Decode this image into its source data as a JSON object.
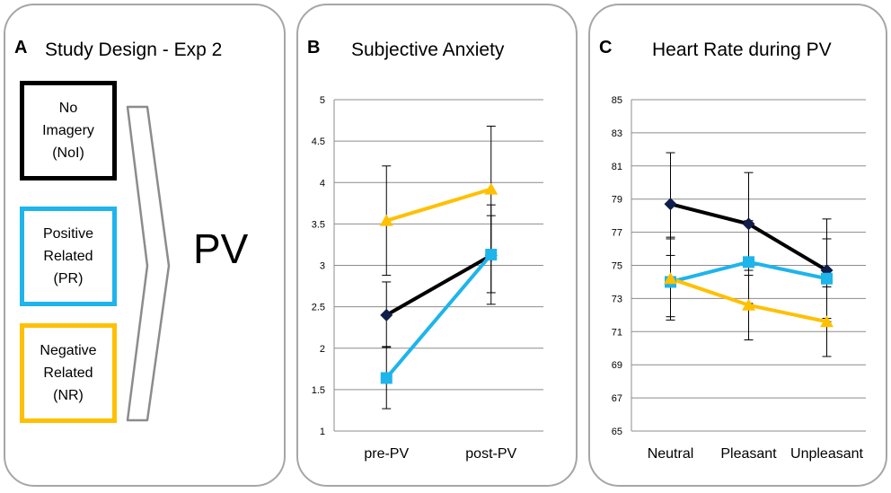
{
  "panel_a": {
    "label": "A",
    "title": "Study Design - Exp 2",
    "conditions": [
      {
        "lines": [
          "No",
          "Imagery",
          "(NoI)"
        ],
        "color": "#000000"
      },
      {
        "lines": [
          "Positive",
          "Related",
          "(PR)"
        ],
        "color": "#1eb4ec"
      },
      {
        "lines": [
          "Negative",
          "Related",
          "(NR)"
        ],
        "color": "#ffc000"
      }
    ],
    "outcome": "PV"
  },
  "colors": {
    "noi": "#000000",
    "noi_c": "#0f1e4a",
    "pr": "#1eb4ec",
    "nr": "#ffc000",
    "grid": "#8c8c8c",
    "frame": "#a6a6a6"
  },
  "chart_data": [
    {
      "label": "B",
      "type": "line",
      "title": "Subjective Anxiety",
      "categories": [
        "pre-PV",
        "post-PV"
      ],
      "ylim": [
        1,
        5
      ],
      "yticks": [
        "1",
        "1.5",
        "2",
        "2.5",
        "3",
        "3.5",
        "4",
        "4.5",
        "5"
      ],
      "grid": true,
      "series": [
        {
          "name": "NoI",
          "marker": "diamond",
          "values": [
            2.4,
            3.12
          ],
          "err": [
            [
              2.01,
              2.8
            ],
            [
              2.67,
              3.6
            ]
          ]
        },
        {
          "name": "PR",
          "marker": "square",
          "values": [
            1.64,
            3.13
          ],
          "err": [
            [
              1.27,
              2.02
            ],
            [
              2.53,
              3.73
            ]
          ]
        },
        {
          "name": "NR",
          "marker": "triangle",
          "values": [
            3.54,
            3.92
          ],
          "err": [
            [
              2.88,
              4.2
            ],
            [
              3.17,
              4.68
            ]
          ]
        }
      ]
    },
    {
      "label": "C",
      "type": "line",
      "title": "Heart Rate during PV",
      "categories": [
        "Neutral",
        "Pleasant",
        "Unpleasant"
      ],
      "ylim": [
        65,
        85
      ],
      "yticks": [
        "65",
        "67",
        "69",
        "71",
        "73",
        "75",
        "77",
        "79",
        "81",
        "83",
        "85"
      ],
      "grid": true,
      "series": [
        {
          "name": "NoI",
          "marker": "diamond",
          "values": [
            78.7,
            77.5,
            74.7
          ],
          "err": [
            [
              75.6,
              81.8
            ],
            [
              74.4,
              80.6
            ],
            [
              71.6,
              77.8
            ]
          ]
        },
        {
          "name": "PR",
          "marker": "square",
          "values": [
            74.0,
            75.2,
            74.2
          ],
          "err": [
            [
              71.9,
              76.6
            ],
            [
              72.7,
              77.7
            ],
            [
              71.8,
              76.6
            ]
          ]
        },
        {
          "name": "NR",
          "marker": "triangle",
          "values": [
            74.2,
            72.6,
            71.6
          ],
          "err": [
            [
              71.7,
              76.7
            ],
            [
              70.5,
              74.7
            ],
            [
              69.5,
              73.7
            ]
          ]
        }
      ]
    }
  ]
}
